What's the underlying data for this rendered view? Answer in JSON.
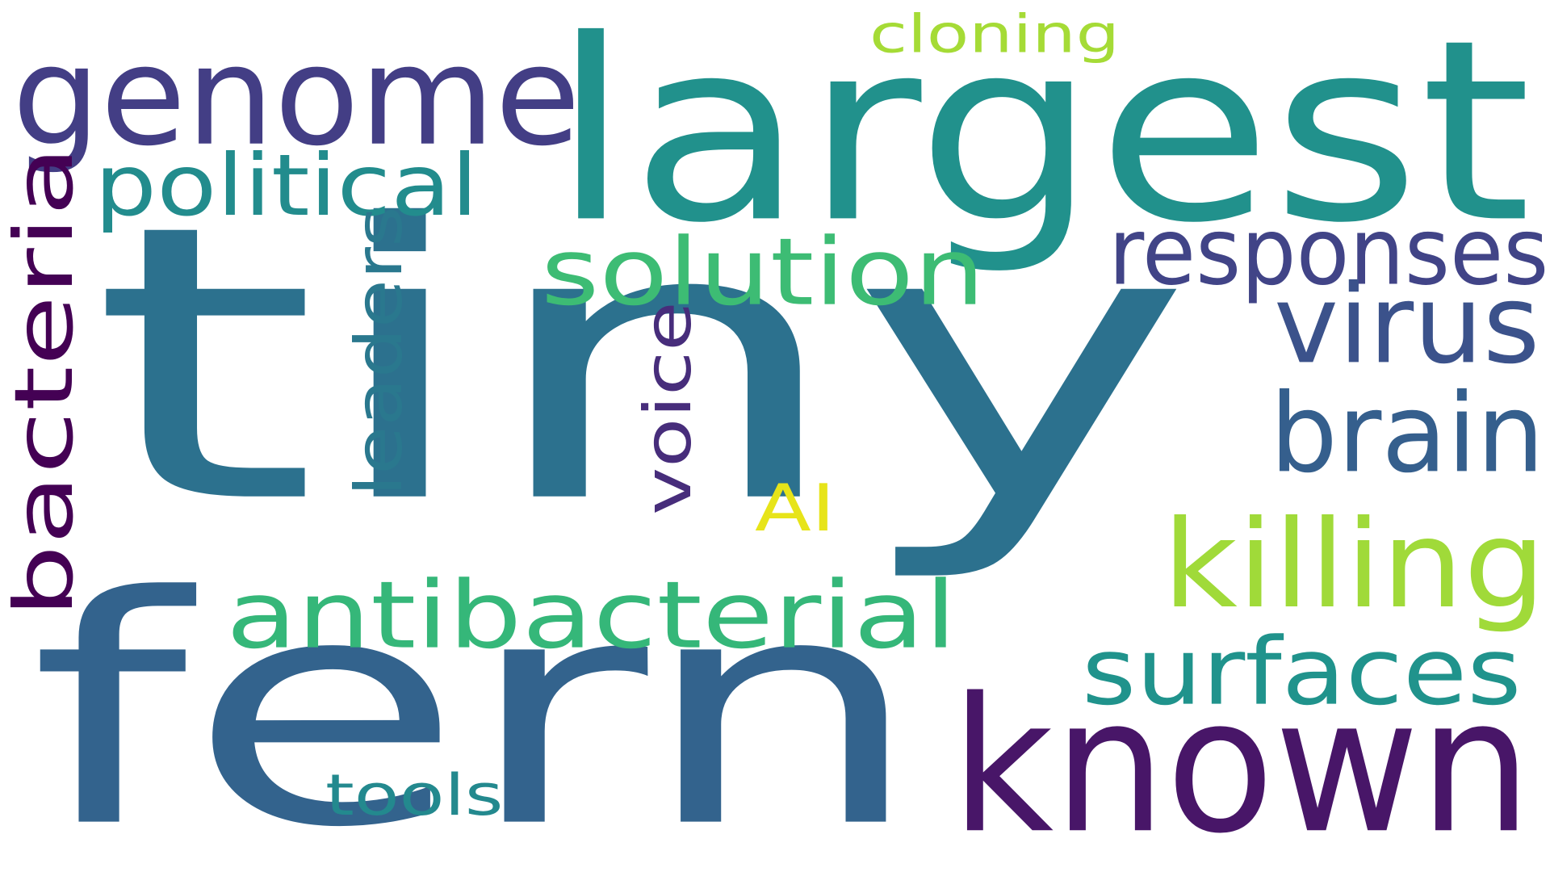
{
  "words": [
    {
      "id": "tiny",
      "text": "tiny",
      "color": "#2c718e"
    },
    {
      "id": "fern",
      "text": "fern",
      "color": "#33638d"
    },
    {
      "id": "largest",
      "text": "largest",
      "color": "#21918c"
    },
    {
      "id": "known",
      "text": "known",
      "color": "#481668"
    },
    {
      "id": "genome",
      "text": "genome",
      "color": "#433e85"
    },
    {
      "id": "bacteria",
      "text": "bacteria",
      "color": "#440154"
    },
    {
      "id": "antibacterial",
      "text": "antibacterial",
      "color": "#35b779"
    },
    {
      "id": "solution",
      "text": "solution",
      "color": "#3dbc74"
    },
    {
      "id": "responses",
      "text": "responses",
      "color": "#414487"
    },
    {
      "id": "killing",
      "text": "killing",
      "color": "#a0da39"
    },
    {
      "id": "surfaces",
      "text": "surfaces",
      "color": "#20938c"
    },
    {
      "id": "virus",
      "text": "virus",
      "color": "#3b528b"
    },
    {
      "id": "brain",
      "text": "brain",
      "color": "#355f8d"
    },
    {
      "id": "political",
      "text": "political",
      "color": "#228c8d"
    },
    {
      "id": "leaders",
      "text": "leaders",
      "color": "#2a788e"
    },
    {
      "id": "voice",
      "text": "voice",
      "color": "#472d7b"
    },
    {
      "id": "cloning",
      "text": "cloning",
      "color": "#a5db36"
    },
    {
      "id": "tools",
      "text": "tools",
      "color": "#23898e"
    },
    {
      "id": "ai",
      "text": "AI",
      "color": "#e7e419"
    }
  ]
}
